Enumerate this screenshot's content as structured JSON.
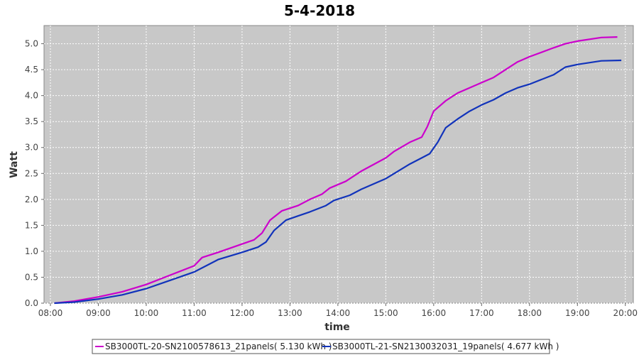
{
  "chart_data": {
    "type": "line",
    "title": "5-4-2018",
    "xlabel": "time",
    "ylabel": "Watt",
    "xlim": [
      "07:52",
      "20:10"
    ],
    "ylim": [
      0,
      5.35
    ],
    "xticks": [
      "08:00",
      "09:00",
      "10:00",
      "11:00",
      "12:00",
      "13:00",
      "14:00",
      "15:00",
      "16:00",
      "17:00",
      "18:00",
      "19:00",
      "20:00"
    ],
    "yticks": [
      "0.0",
      "0.5",
      "1.0",
      "1.5",
      "2.0",
      "2.5",
      "3.0",
      "3.5",
      "4.0",
      "4.5",
      "5.0"
    ],
    "grid": true,
    "legend_position": "bottom",
    "background_color": "#c8c8c8",
    "series": [
      {
        "name": "SB3000TL-20-SN2100578613_21panels( 5.130 kWh )",
        "color": "#cc00cc",
        "points": [
          [
            "08:05",
            0.0
          ],
          [
            "08:30",
            0.04
          ],
          [
            "09:00",
            0.12
          ],
          [
            "09:30",
            0.22
          ],
          [
            "10:00",
            0.36
          ],
          [
            "10:30",
            0.54
          ],
          [
            "11:00",
            0.72
          ],
          [
            "11:10",
            0.88
          ],
          [
            "11:30",
            0.98
          ],
          [
            "12:00",
            1.14
          ],
          [
            "12:15",
            1.22
          ],
          [
            "12:25",
            1.35
          ],
          [
            "12:35",
            1.6
          ],
          [
            "12:50",
            1.78
          ],
          [
            "13:10",
            1.88
          ],
          [
            "13:25",
            2.0
          ],
          [
            "13:40",
            2.1
          ],
          [
            "13:50",
            2.22
          ],
          [
            "14:10",
            2.35
          ],
          [
            "14:30",
            2.55
          ],
          [
            "15:00",
            2.8
          ],
          [
            "15:10",
            2.92
          ],
          [
            "15:30",
            3.1
          ],
          [
            "15:45",
            3.2
          ],
          [
            "15:52",
            3.4
          ],
          [
            "16:00",
            3.7
          ],
          [
            "16:15",
            3.9
          ],
          [
            "16:30",
            4.05
          ],
          [
            "17:00",
            4.25
          ],
          [
            "17:15",
            4.35
          ],
          [
            "17:30",
            4.5
          ],
          [
            "17:45",
            4.65
          ],
          [
            "18:00",
            4.75
          ],
          [
            "18:30",
            4.92
          ],
          [
            "18:45",
            5.0
          ],
          [
            "19:00",
            5.05
          ],
          [
            "19:30",
            5.12
          ],
          [
            "19:50",
            5.13
          ]
        ]
      },
      {
        "name": "SB3000TL-21-SN2130032031_19panels( 4.677 kWh )",
        "color": "#1133bb",
        "points": [
          [
            "08:05",
            0.0
          ],
          [
            "08:30",
            0.02
          ],
          [
            "09:00",
            0.08
          ],
          [
            "09:30",
            0.16
          ],
          [
            "10:00",
            0.28
          ],
          [
            "10:30",
            0.44
          ],
          [
            "11:00",
            0.6
          ],
          [
            "11:15",
            0.72
          ],
          [
            "11:30",
            0.84
          ],
          [
            "12:00",
            0.98
          ],
          [
            "12:20",
            1.08
          ],
          [
            "12:30",
            1.18
          ],
          [
            "12:40",
            1.4
          ],
          [
            "12:55",
            1.6
          ],
          [
            "13:10",
            1.68
          ],
          [
            "13:25",
            1.76
          ],
          [
            "13:45",
            1.88
          ],
          [
            "13:55",
            1.98
          ],
          [
            "14:15",
            2.08
          ],
          [
            "14:30",
            2.2
          ],
          [
            "15:00",
            2.4
          ],
          [
            "15:30",
            2.68
          ],
          [
            "15:45",
            2.8
          ],
          [
            "15:55",
            2.88
          ],
          [
            "16:05",
            3.1
          ],
          [
            "16:15",
            3.38
          ],
          [
            "16:30",
            3.55
          ],
          [
            "16:45",
            3.7
          ],
          [
            "17:00",
            3.82
          ],
          [
            "17:15",
            3.92
          ],
          [
            "17:30",
            4.05
          ],
          [
            "17:45",
            4.15
          ],
          [
            "18:00",
            4.22
          ],
          [
            "18:30",
            4.4
          ],
          [
            "18:45",
            4.55
          ],
          [
            "19:00",
            4.6
          ],
          [
            "19:30",
            4.67
          ],
          [
            "19:55",
            4.68
          ]
        ]
      }
    ]
  }
}
